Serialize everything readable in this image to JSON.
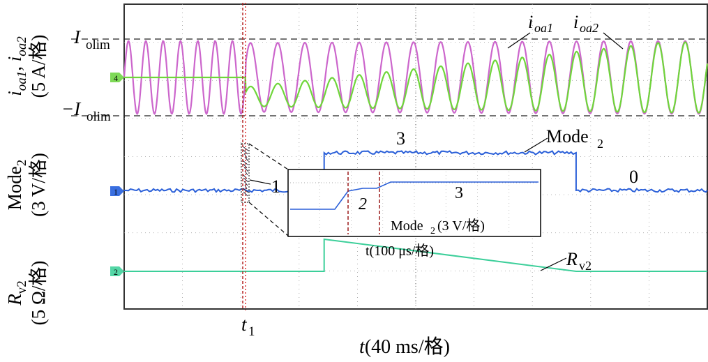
{
  "chart_data": {
    "type": "line",
    "title": "",
    "x_axis_label": "t(40 ms/格)",
    "time_marker": {
      "label_main": "t",
      "label_sub": "1"
    },
    "x_divisions": 10,
    "panels": [
      {
        "id": "current",
        "ylabel_lines": [
          {
            "parts": [
              [
                "i",
                "it"
              ],
              [
                "oa1",
                "sub-it"
              ],
              [
                ", ",
                ""
              ],
              [
                "i",
                "it"
              ],
              [
                "oa2",
                "sub-it"
              ]
            ]
          },
          {
            "parts": [
              [
                "(5 A/格)",
                ""
              ]
            ]
          }
        ],
        "channel_marker": "4",
        "reference_levels": [
          {
            "label_main": "I",
            "label_sub": "olim",
            "value": 1
          },
          {
            "label_main": "−I",
            "label_sub": "olim",
            "value": -1
          }
        ],
        "series": [
          {
            "name": "i",
            "name_sub": "oa1",
            "color": "#cc66cc",
            "before_t1": {
              "amplitude": 0.95,
              "offset": 0,
              "cycles": 7
            },
            "after_t1": {
              "amplitude_start": 0.9,
              "amplitude_end": 0.95,
              "offset": 0,
              "cycles": 17
            }
          },
          {
            "name": "i",
            "name_sub": "oa2",
            "color": "#6fd63a",
            "before_t1": {
              "amplitude": 0,
              "offset": 0
            },
            "after_t1": {
              "amplitude_start": 0.25,
              "amplitude_end": 0.92,
              "offset_start": -0.5,
              "offset_end": 0,
              "cycles": 17
            }
          }
        ]
      },
      {
        "id": "mode",
        "ylabel_lines": [
          {
            "parts": [
              [
                "Mode",
                ""
              ],
              [
                "2",
                "sub"
              ]
            ]
          },
          {
            "parts": [
              [
                "(3 V/格)",
                ""
              ]
            ]
          }
        ],
        "channel_marker": "1",
        "series": [
          {
            "name": "Mode",
            "name_sub": "2",
            "color": "#2a5fd8",
            "levels": [
              {
                "state": 0,
                "until": 0.343
              },
              {
                "state": 3,
                "until": 0.775
              },
              {
                "state": 0,
                "until": 1
              }
            ]
          }
        ],
        "state_labels": [
          "3",
          "1",
          "0"
        ],
        "inset": {
          "x_label": "t(100 μs/格)",
          "series_label_main": "Mode",
          "series_label_sub": "2",
          "series_label_tail": "(3 V/格)",
          "state_labels": [
            "2",
            "3"
          ],
          "steps": [
            {
              "state": 1
            },
            {
              "state": 2
            },
            {
              "state": 3
            }
          ]
        }
      },
      {
        "id": "resistance",
        "ylabel_lines": [
          {
            "parts": [
              [
                "R",
                "it"
              ],
              [
                "v2",
                "sub"
              ]
            ]
          },
          {
            "parts": [
              [
                "(5 Ω/格)",
                ""
              ]
            ]
          }
        ],
        "channel_marker": "2",
        "series": [
          {
            "name": "R",
            "name_sub": "v2",
            "color": "#3ccf9a",
            "points": [
              {
                "t": 0,
                "v": 0
              },
              {
                "t": 0.343,
                "v": 0
              },
              {
                "t": 0.343,
                "v": 1
              },
              {
                "t": 0.775,
                "v": 0
              },
              {
                "t": 1,
                "v": 0
              }
            ]
          }
        ]
      }
    ],
    "grid": true
  }
}
